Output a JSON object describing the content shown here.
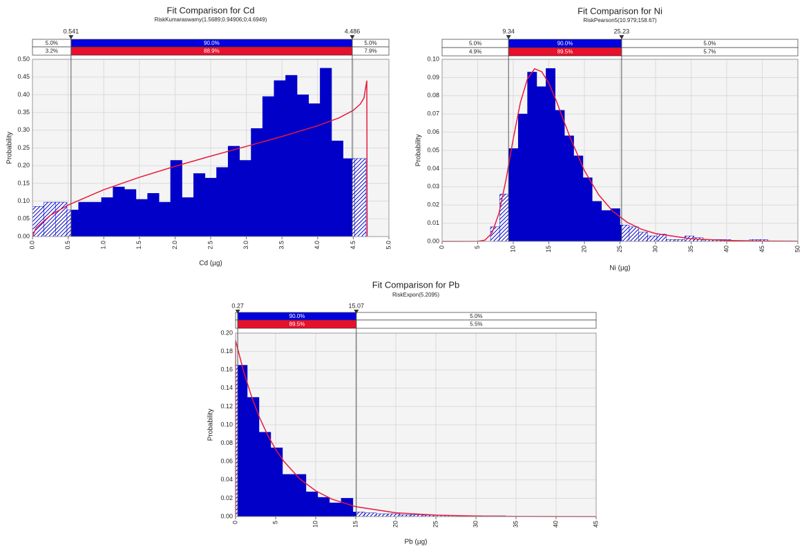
{
  "chart_data": [
    {
      "type": "histogram",
      "title": "Fit Comparison for Cd",
      "subtitle": "RiskKumaraswamy(1.5689;0.94906;0;4.6949)",
      "x_label": "Cd (µg)",
      "y_label": "Probability",
      "color": "#0000c8",
      "grid": true,
      "bins": [
        0,
        0.161,
        0.323,
        0.484,
        0.646,
        0.807,
        0.968,
        1.13,
        1.291,
        1.453,
        1.614,
        1.775,
        1.937,
        2.098,
        2.26,
        2.421,
        2.582,
        2.744,
        2.905,
        3.067,
        3.228,
        3.389,
        3.551,
        3.712,
        3.874,
        4.035,
        4.196,
        4.358,
        4.519,
        4.68
      ],
      "counts": [
        0.085,
        0.097,
        0.097,
        0.075,
        0.097,
        0.097,
        0.11,
        0.14,
        0.133,
        0.105,
        0.122,
        0.097,
        0.215,
        0.11,
        0.178,
        0.165,
        0.195,
        0.255,
        0.215,
        0.305,
        0.395,
        0.44,
        0.455,
        0.4,
        0.375,
        0.475,
        0.27,
        0.22,
        0.22
      ],
      "fit": {
        "color": "#e8183c",
        "x": [
          0,
          0.05,
          0.25,
          0.5,
          1,
          1.5,
          2,
          2.5,
          3,
          3.5,
          4,
          4.3,
          4.5,
          4.6,
          4.65,
          4.69,
          4.695
        ],
        "y": [
          0,
          0.024,
          0.0598,
          0.0888,
          0.1322,
          0.1672,
          0.1982,
          0.2269,
          0.2545,
          0.2823,
          0.3126,
          0.3348,
          0.356,
          0.374,
          0.391,
          0.44,
          0
        ]
      },
      "delimiters": [
        0.541,
        4.486
      ],
      "upper_row": [
        {
          "value": 5,
          "label": "5.0%"
        },
        {
          "value": 90,
          "label": "90.0%"
        },
        {
          "value": 5,
          "label": "5.0%"
        }
      ],
      "lower_row": [
        {
          "value": 3.2,
          "label": "3.2%"
        },
        {
          "value": 88.9,
          "label": "88.9%"
        },
        {
          "value": 7.9,
          "label": "7.9%"
        }
      ],
      "xlim": [
        0,
        5
      ],
      "ylim": [
        0,
        0.5
      ],
      "xticks": [
        {
          "value": 0,
          "label": "0.0"
        },
        0.5,
        {
          "value": 1,
          "label": "1.0"
        },
        1.5,
        {
          "value": 2,
          "label": "2.0"
        },
        2.5,
        {
          "value": 3,
          "label": "3.0"
        },
        3.5,
        {
          "value": 4,
          "label": "4.0"
        },
        4.5,
        {
          "value": 5,
          "label": "5.0"
        }
      ],
      "yticks": [
        {
          "value": 0,
          "label": "0.00"
        },
        0.05,
        {
          "value": 0.1,
          "label": "0.10"
        },
        0.15,
        {
          "value": 0.2,
          "label": "0.20"
        },
        0.25,
        {
          "value": 0.3,
          "label": "0.30"
        },
        0.35,
        {
          "value": 0.4,
          "label": "0.40"
        },
        0.45,
        {
          "value": 0.5,
          "label": "0.50"
        }
      ]
    },
    {
      "type": "histogram",
      "title": "Fit Comparison for Ni",
      "subtitle": "RiskPearson5(10.979;158.67)",
      "x_label": "Ni (µg)",
      "y_label": "Probability",
      "color": "#0000c8",
      "grid": true,
      "bins": [
        6.8,
        8.1,
        9.4,
        10.7,
        12,
        13.3,
        14.6,
        15.9,
        17.2,
        18.5,
        19.8,
        21.1,
        22.4,
        23.7,
        25,
        26.3,
        27.6,
        28.9,
        30.2,
        31.5,
        32.8,
        34.1,
        35.4,
        36.7,
        38,
        39.3,
        40.6,
        41.9,
        43.2,
        44.5,
        45.8
      ],
      "counts": [
        0.008,
        0.026,
        0.051,
        0.07,
        0.093,
        0.085,
        0.095,
        0.072,
        0.058,
        0.047,
        0.035,
        0.022,
        0.017,
        0.018,
        0.009,
        0.008,
        0.005,
        0.003,
        0.004,
        0.001,
        0.001,
        0.003,
        0.002,
        0.001,
        0.001,
        0.001,
        0.0005,
        0.0005,
        0.001,
        0.001
      ],
      "fit": {
        "color": "#e8183c",
        "x": [
          0,
          5,
          6,
          7,
          8,
          9,
          10,
          11,
          12,
          13,
          14,
          15,
          16,
          17,
          18,
          20,
          22,
          24,
          26,
          28,
          30,
          35,
          40,
          45,
          50
        ],
        "y": [
          0,
          3e-05,
          0.00065,
          0.0045,
          0.0155,
          0.0342,
          0.0564,
          0.0762,
          0.0893,
          0.0948,
          0.0932,
          0.0869,
          0.0777,
          0.0673,
          0.057,
          0.0389,
          0.0256,
          0.0165,
          0.0105,
          0.0067,
          0.0043,
          0.00143,
          0.00051,
          0.0002,
          0.0001
        ]
      },
      "delimiters": [
        9.34,
        25.23
      ],
      "upper_row": [
        {
          "value": 5,
          "label": "5.0%"
        },
        {
          "value": 90,
          "label": "90.0%"
        },
        {
          "value": 5,
          "label": "5.0%"
        }
      ],
      "lower_row": [
        {
          "value": 4.9,
          "label": "4.9%"
        },
        {
          "value": 89.5,
          "label": "89.5%"
        },
        {
          "value": 5.7,
          "label": "5.7%"
        }
      ],
      "xlim": [
        0,
        50
      ],
      "ylim": [
        0,
        0.1
      ],
      "xticks": [
        0,
        5,
        10,
        15,
        20,
        25,
        30,
        35,
        40,
        45,
        50
      ],
      "yticks": [
        {
          "value": 0,
          "label": "0.00"
        },
        {
          "value": 0.01,
          "label": "0.01"
        },
        {
          "value": 0.02,
          "label": "0.02"
        },
        {
          "value": 0.03,
          "label": "0.03"
        },
        {
          "value": 0.04,
          "label": "0.04"
        },
        {
          "value": 0.05,
          "label": "0.05"
        },
        {
          "value": 0.06,
          "label": "0.06"
        },
        {
          "value": 0.07,
          "label": "0.07"
        },
        {
          "value": 0.08,
          "label": "0.08"
        },
        {
          "value": 0.09,
          "label": "0.09"
        },
        {
          "value": 0.1,
          "label": "0.10"
        }
      ]
    },
    {
      "type": "histogram",
      "title": "Fit Comparison for Pb",
      "subtitle": "RiskExpon(5.2095)",
      "x_label": "Pb (µg)",
      "y_label": "Probability",
      "color": "#0000c8",
      "grid": true,
      "bins": [
        0,
        1.465,
        2.93,
        4.395,
        5.86,
        7.325,
        8.79,
        10.255,
        11.72,
        13.185,
        14.65,
        16.115,
        17.58,
        19.045,
        20.51,
        21.975,
        23.44,
        24.905,
        26.37,
        27.835,
        29.3,
        30.765,
        32.23,
        33.695,
        35.16
      ],
      "counts": [
        0.165,
        0.13,
        0.092,
        0.075,
        0.046,
        0.046,
        0.027,
        0.021,
        0.015,
        0.02,
        0.005,
        0.004,
        0.003,
        0.003,
        0.002,
        0.002,
        0.0015,
        0.0015,
        0.001,
        0.001,
        0.001,
        0.0008,
        0.0008,
        0.0005
      ],
      "fit": {
        "color": "#e8183c",
        "x": [
          0,
          0,
          1,
          2,
          3,
          4,
          5,
          6,
          8,
          10,
          12,
          15,
          20,
          25,
          30,
          35,
          40,
          45
        ],
        "y": [
          0,
          0.192,
          0.1584,
          0.1307,
          0.1078,
          0.0889,
          0.0733,
          0.0605,
          0.0412,
          0.0281,
          0.0191,
          0.0108,
          0.00412,
          0.00158,
          0.0006,
          0.00023,
          9e-05,
          3e-05
        ]
      },
      "delimiters": [
        0.27,
        15.07
      ],
      "upper_row": [
        null,
        {
          "value": 90,
          "label": "90.0%"
        },
        {
          "value": 5,
          "label": "5.0%"
        }
      ],
      "lower_row": [
        null,
        {
          "value": 89.5,
          "label": "89.5%"
        },
        {
          "value": 5.5,
          "label": "5.5%"
        }
      ],
      "xlim": [
        0,
        45
      ],
      "ylim": [
        0,
        0.2
      ],
      "xticks": [
        0,
        5,
        10,
        15,
        20,
        25,
        30,
        35,
        40,
        45
      ],
      "yticks": [
        {
          "value": 0,
          "label": "0.00"
        },
        {
          "value": 0.02,
          "label": "0.02"
        },
        {
          "value": 0.04,
          "label": "0.04"
        },
        {
          "value": 0.06,
          "label": "0.06"
        },
        {
          "value": 0.08,
          "label": "0.08"
        },
        {
          "value": 0.1,
          "label": "0.10"
        },
        {
          "value": 0.12,
          "label": "0.12"
        },
        {
          "value": 0.14,
          "label": "0.14"
        },
        {
          "value": 0.16,
          "label": "0.16"
        },
        {
          "value": 0.18,
          "label": "0.18"
        },
        {
          "value": 0.2,
          "label": "0.20"
        }
      ]
    }
  ]
}
